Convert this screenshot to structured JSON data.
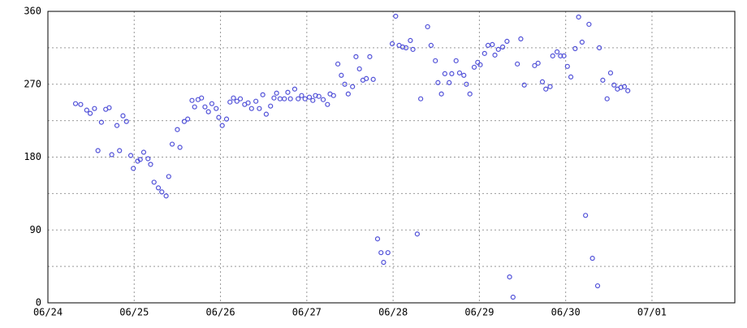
{
  "chart_data": {
    "type": "scatter",
    "color": "#5050d8",
    "x": [
      0.32,
      0.38,
      0.45,
      0.49,
      0.54,
      0.58,
      0.62,
      0.67,
      0.71,
      0.74,
      0.8,
      0.83,
      0.87,
      0.91,
      0.96,
      0.99,
      1.04,
      1.07,
      1.11,
      1.16,
      1.19,
      1.23,
      1.28,
      1.32,
      1.37,
      1.4,
      1.44,
      1.5,
      1.53,
      1.58,
      1.62,
      1.67,
      1.7,
      1.74,
      1.78,
      1.82,
      1.86,
      1.9,
      1.95,
      1.98,
      2.02,
      2.07,
      2.11,
      2.15,
      2.19,
      2.23,
      2.28,
      2.32,
      2.36,
      2.41,
      2.45,
      2.49,
      2.53,
      2.58,
      2.62,
      2.65,
      2.69,
      2.74,
      2.78,
      2.81,
      2.86,
      2.9,
      2.94,
      2.98,
      3.03,
      3.07,
      3.1,
      3.14,
      3.19,
      3.24,
      3.27,
      3.31,
      3.36,
      3.4,
      3.44,
      3.48,
      3.53,
      3.57,
      3.61,
      3.65,
      3.69,
      3.73,
      3.77,
      3.82,
      3.86,
      3.89,
      3.94,
      3.99,
      4.03,
      4.07,
      4.11,
      4.15,
      4.2,
      4.23,
      4.28,
      4.32,
      4.4,
      4.44,
      4.49,
      4.52,
      4.56,
      4.6,
      4.65,
      4.68,
      4.73,
      4.77,
      4.82,
      4.85,
      4.89,
      4.94,
      4.98,
      5.01,
      5.06,
      5.1,
      5.15,
      5.18,
      5.22,
      5.27,
      5.32,
      5.35,
      5.39,
      5.44,
      5.48,
      5.52,
      5.64,
      5.68,
      5.73,
      5.77,
      5.82,
      5.85,
      5.9,
      5.94,
      5.98,
      6.02,
      6.06,
      6.11,
      6.15,
      6.19,
      6.23,
      6.27,
      6.31,
      6.37,
      6.39,
      6.43,
      6.48,
      6.52,
      6.56,
      6.6,
      6.64,
      6.68,
      6.72
    ],
    "values": [
      246,
      245,
      238,
      234,
      240,
      188,
      223,
      239,
      241,
      183,
      219,
      188,
      231,
      224,
      182,
      166,
      175,
      177,
      186,
      178,
      171,
      149,
      142,
      137,
      132,
      156,
      196,
      214,
      192,
      224,
      227,
      250,
      242,
      251,
      253,
      242,
      236,
      246,
      240,
      229,
      219,
      227,
      248,
      253,
      249,
      252,
      245,
      247,
      240,
      249,
      240,
      257,
      233,
      243,
      253,
      259,
      252,
      252,
      260,
      252,
      264,
      252,
      256,
      252,
      254,
      250,
      256,
      255,
      251,
      245,
      258,
      256,
      295,
      281,
      270,
      258,
      267,
      304,
      289,
      275,
      277,
      304,
      276,
      79,
      62,
      50,
      62,
      320,
      354,
      318,
      316,
      315,
      324,
      313,
      85,
      252,
      341,
      318,
      299,
      272,
      258,
      283,
      272,
      283,
      299,
      284,
      281,
      270,
      258,
      291,
      297,
      294,
      308,
      318,
      319,
      306,
      313,
      316,
      323,
      32,
      7,
      295,
      326,
      269,
      293,
      296,
      273,
      264,
      267,
      305,
      310,
      305,
      305,
      292,
      279,
      314,
      353,
      322,
      108,
      344,
      55,
      21,
      315,
      275,
      252,
      284,
      269,
      264,
      266,
      267,
      262
    ],
    "xlim": [
      0,
      7.96
    ],
    "xticks": [
      {
        "value": 0,
        "label": "06/24"
      },
      {
        "value": 1,
        "label": "06/25"
      },
      {
        "value": 2,
        "label": "06/26"
      },
      {
        "value": 3,
        "label": "06/27"
      },
      {
        "value": 4,
        "label": "06/28"
      },
      {
        "value": 5,
        "label": "06/29"
      },
      {
        "value": 6,
        "label": "06/30"
      },
      {
        "value": 7,
        "label": "07/01"
      }
    ],
    "ylim": [
      0,
      360
    ],
    "yticks": [
      0,
      90,
      180,
      270,
      360
    ],
    "yticks_minor": [
      45,
      135,
      225,
      315
    ],
    "grid": true
  }
}
